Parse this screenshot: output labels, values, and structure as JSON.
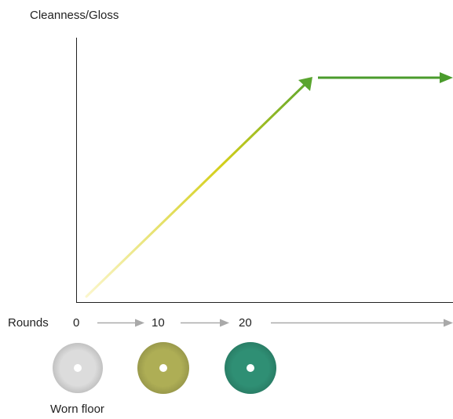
{
  "diagram": {
    "y_axis_label": "Cleanness/Gloss",
    "x_axis_label": "Rounds",
    "round_ticks": [
      "0",
      "10",
      "20"
    ],
    "caption": "Worn floor",
    "colors": {
      "axis": "#222222",
      "round_arrow": "#a9a9a9",
      "curve_start": "#fbf6cc",
      "curve_mid": "#d4cf1a",
      "curve_end": "#5aa52f",
      "plateau": "#4a9b2c",
      "pad_white": "#dcdcdc",
      "pad_olive": "#aeae55",
      "pad_teal": "#2f8f74"
    },
    "pads": [
      {
        "name": "white-pad",
        "color": "#dcdcdc"
      },
      {
        "name": "olive-pad",
        "color": "#aeae55"
      },
      {
        "name": "teal-pad",
        "color": "#2f8f74"
      }
    ]
  }
}
